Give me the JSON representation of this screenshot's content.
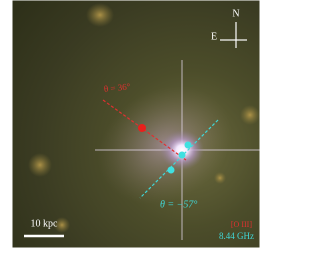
{
  "compass": {
    "north": "N",
    "east": "E"
  },
  "labels": {
    "red_angle": "θ = 36°",
    "cyan_angle": "θ = −57°",
    "scale_bar": "10 kpc",
    "legend_red": "[O III]",
    "legend_cyan": "8.44 GHz"
  }
}
